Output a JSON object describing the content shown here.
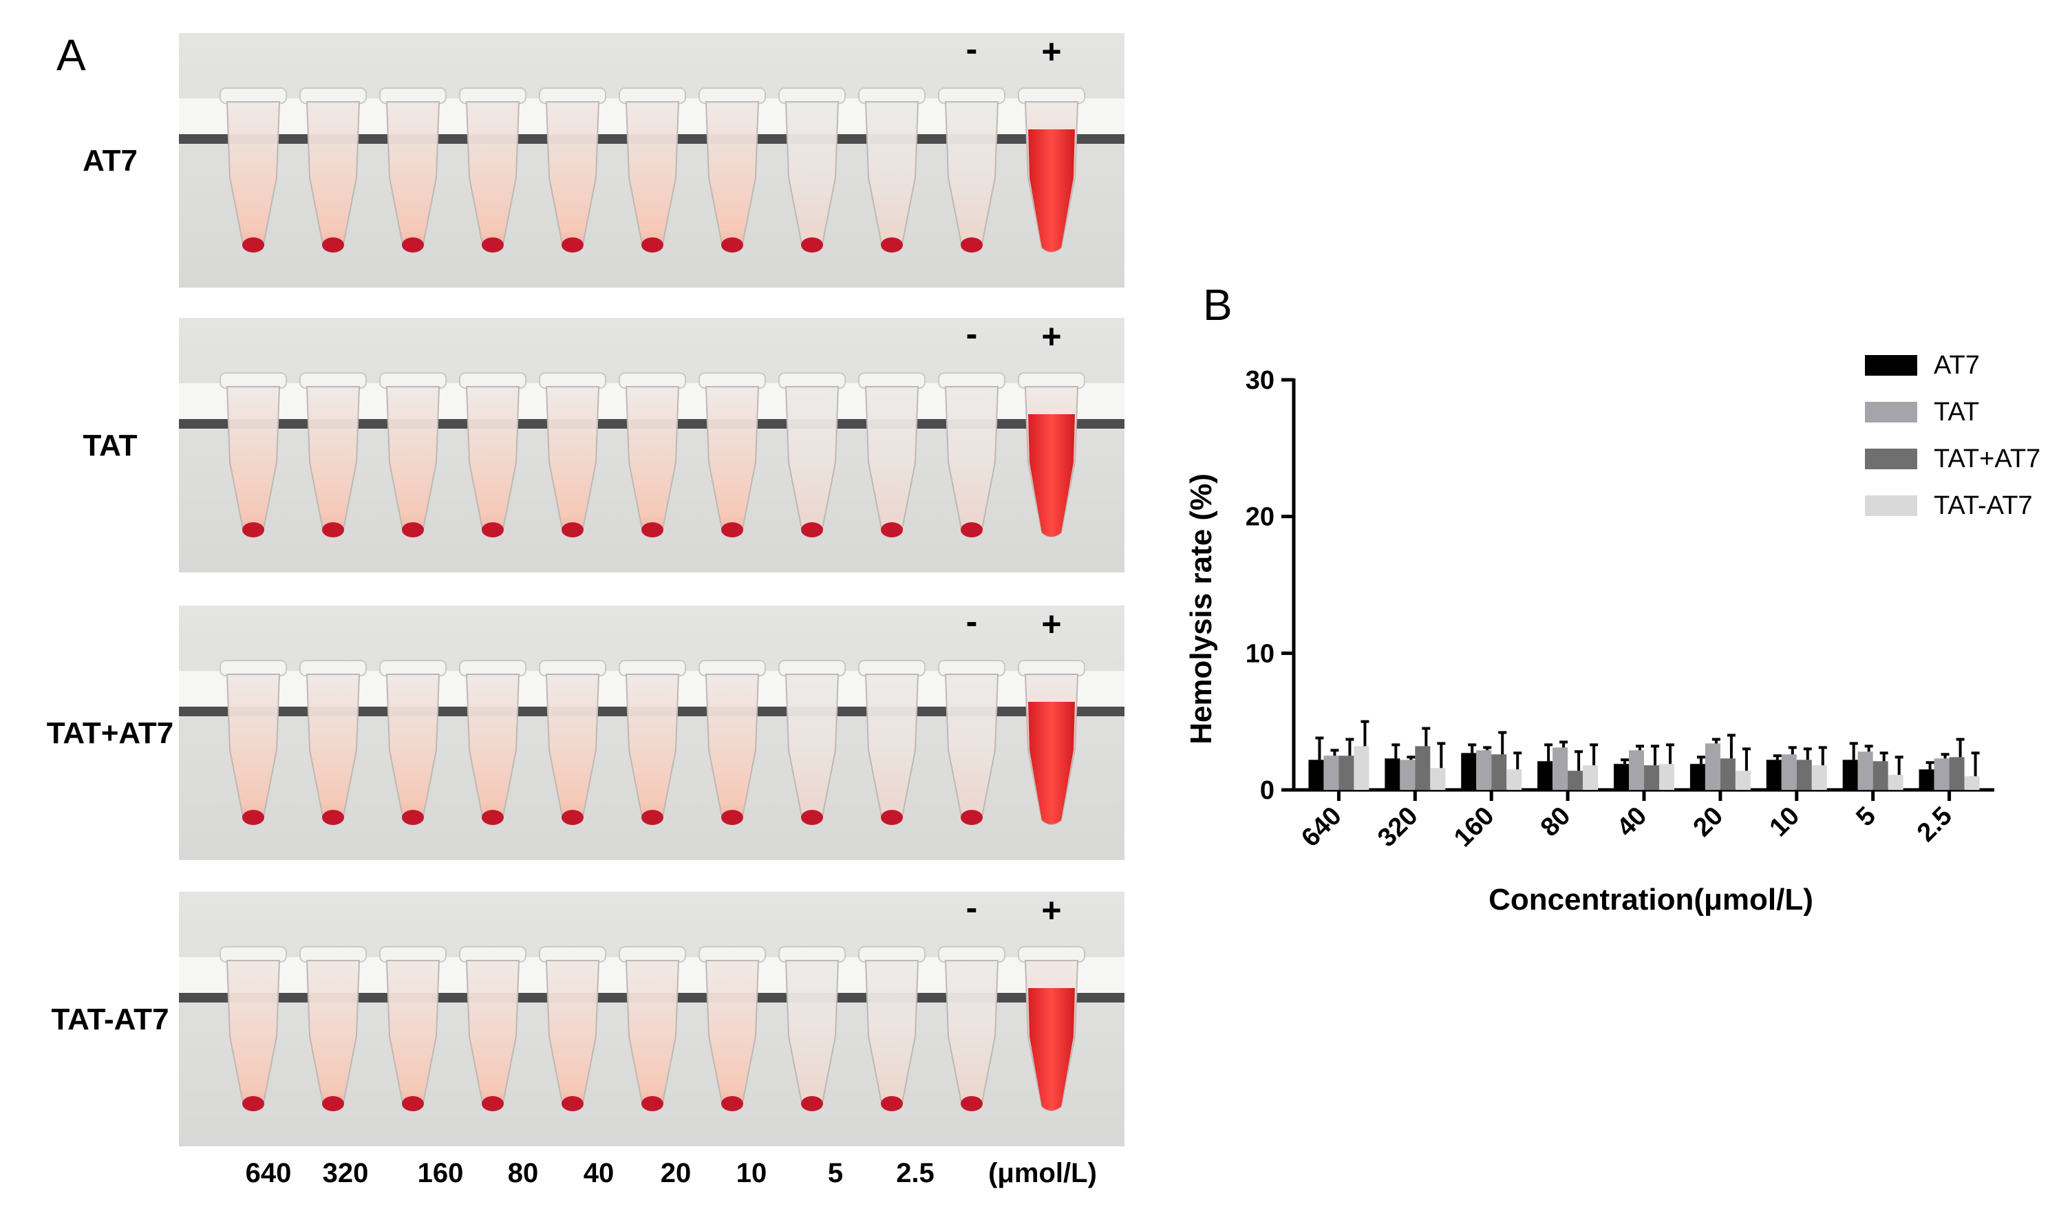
{
  "panel_a": {
    "letter": "A",
    "rows": [
      {
        "label": "AT7"
      },
      {
        "label": "TAT"
      },
      {
        "label": "TAT+AT7"
      },
      {
        "label": "TAT-AT7"
      }
    ],
    "minus_label": "-",
    "plus_label": "+",
    "concentrations": [
      "640",
      "320",
      "160",
      "80",
      "40",
      "20",
      "10",
      "5",
      "2.5"
    ],
    "unit_label": "(μmol/L)"
  },
  "chart_data": {
    "type": "bar",
    "panel_letter": "B",
    "title": "",
    "xlabel": "Concentration(μmol/L)",
    "ylabel": "Hemolysis rate (%)",
    "ylim": [
      0,
      30
    ],
    "yticks": [
      0,
      10,
      20,
      30
    ],
    "categories": [
      "640",
      "320",
      "160",
      "80",
      "40",
      "20",
      "10",
      "5",
      "2.5"
    ],
    "legend_position": "top-right",
    "series": [
      {
        "name": "AT7",
        "color": "#000000",
        "values": [
          2.2,
          2.3,
          2.7,
          2.1,
          1.9,
          1.9,
          2.2,
          2.2,
          1.5
        ],
        "errors": [
          1.6,
          1.0,
          0.6,
          1.2,
          0.3,
          0.5,
          0.3,
          1.2,
          0.5
        ]
      },
      {
        "name": "TAT",
        "color": "#a4a4aa",
        "values": [
          2.5,
          2.2,
          2.9,
          3.1,
          2.9,
          3.4,
          2.6,
          2.8,
          2.3
        ],
        "errors": [
          0.4,
          0.2,
          0.2,
          0.4,
          0.3,
          0.3,
          0.5,
          0.4,
          0.3
        ]
      },
      {
        "name": "TAT+AT7",
        "color": "#6f6f6f",
        "values": [
          2.5,
          3.2,
          2.6,
          1.4,
          1.8,
          2.3,
          2.2,
          2.1,
          2.4
        ],
        "errors": [
          1.2,
          1.3,
          1.6,
          1.4,
          1.4,
          1.7,
          0.8,
          0.6,
          1.3
        ]
      },
      {
        "name": "TAT-AT7",
        "color": "#d9d9d9",
        "values": [
          3.2,
          1.6,
          1.5,
          1.8,
          1.9,
          1.4,
          1.8,
          1.1,
          1.0
        ],
        "errors": [
          1.8,
          1.8,
          1.2,
          1.5,
          1.4,
          1.6,
          1.3,
          1.3,
          1.7
        ]
      }
    ]
  }
}
